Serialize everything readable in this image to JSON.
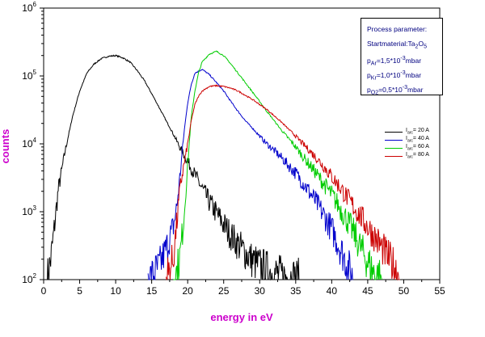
{
  "chart_data": {
    "type": "line",
    "y_scale": "log",
    "xlabel": "energy in eV",
    "ylabel": "counts",
    "xlim": [
      0,
      55
    ],
    "ylim": [
      100,
      1000000
    ],
    "x_ticks": [
      0,
      5,
      10,
      15,
      20,
      25,
      30,
      35,
      40,
      45,
      50,
      55
    ],
    "y_ticks": [
      {
        "value": 100,
        "mantissa": "10",
        "exp": "2"
      },
      {
        "value": 1000,
        "mantissa": "10",
        "exp": "3"
      },
      {
        "value": 10000,
        "mantissa": "10",
        "exp": "4"
      },
      {
        "value": 100000,
        "mantissa": "10",
        "exp": "5"
      },
      {
        "value": 1000000,
        "mantissa": "10",
        "exp": "6"
      }
    ],
    "series": [
      {
        "name": "I_arc = 20 A",
        "label_main": "I",
        "label_sub": "arc",
        "label_rest": "= 20 A",
        "color": "#000000",
        "x": [
          0.5,
          1,
          1.5,
          2,
          3,
          4,
          5,
          6,
          7,
          8,
          9,
          10,
          11,
          12,
          13,
          14,
          15,
          16,
          17,
          18,
          19,
          20,
          21,
          22,
          23,
          24,
          25,
          26,
          27,
          28,
          29,
          30,
          31,
          32,
          33,
          34,
          35,
          35.5
        ],
        "y": [
          100,
          200,
          600,
          2000,
          8000,
          25000,
          60000,
          110000,
          150000,
          180000,
          195000,
          200000,
          185000,
          160000,
          120000,
          85000,
          55000,
          35000,
          22000,
          14000,
          8500,
          5500,
          3500,
          2200,
          1400,
          950,
          650,
          450,
          330,
          250,
          190,
          160,
          140,
          125,
          115,
          110,
          105,
          100
        ]
      },
      {
        "name": "I_arc = 40 A",
        "label_main": "I",
        "label_sub": "arc",
        "label_rest": "= 40 A",
        "color": "#0000cc",
        "x": [
          14.5,
          15,
          16,
          17,
          18,
          18.5,
          19,
          19.5,
          20,
          20.5,
          21,
          22,
          23,
          24,
          25,
          26,
          27,
          28,
          29,
          30,
          31,
          32,
          33,
          34,
          35,
          36,
          37,
          38,
          39,
          40,
          41,
          42,
          43
        ],
        "y": [
          100,
          110,
          150,
          280,
          600,
          1200,
          4000,
          15000,
          40000,
          75000,
          110000,
          125000,
          105000,
          80000,
          60000,
          42000,
          30000,
          22000,
          17000,
          13000,
          10000,
          8000,
          6300,
          4800,
          3700,
          2700,
          1900,
          1300,
          850,
          550,
          320,
          180,
          100
        ]
      },
      {
        "name": "I_arc = 60 A",
        "label_main": "I",
        "label_sub": "arc",
        "label_rest": "= 60 A",
        "color": "#00cc00",
        "x": [
          18,
          18.5,
          19,
          19.5,
          20,
          20.5,
          21,
          21.5,
          22,
          23,
          24,
          25,
          26,
          27,
          28,
          29,
          30,
          31,
          32,
          33,
          34,
          35,
          36,
          37,
          38,
          39,
          40,
          41,
          42,
          43,
          44,
          45,
          46,
          47
        ],
        "y": [
          100,
          130,
          250,
          900,
          5000,
          25000,
          60000,
          110000,
          160000,
          210000,
          230000,
          200000,
          150000,
          110000,
          80000,
          58000,
          42000,
          30000,
          22000,
          16000,
          12000,
          9000,
          6500,
          4800,
          3500,
          2500,
          1800,
          1200,
          800,
          500,
          300,
          180,
          120,
          100
        ]
      },
      {
        "name": "I_arc = 80 A",
        "label_main": "I",
        "label_sub": "arc",
        "label_rest": "= 80 A",
        "color": "#cc0000",
        "x": [
          17,
          18,
          19,
          20,
          20.5,
          21,
          21.5,
          22,
          23,
          24,
          25,
          26,
          27,
          28,
          29,
          30,
          31,
          32,
          33,
          34,
          35,
          36,
          37,
          38,
          39,
          40,
          41,
          42,
          43,
          44,
          45,
          46,
          47,
          48,
          49,
          49.5
        ],
        "y": [
          100,
          200,
          2500,
          10000,
          22000,
          38000,
          50000,
          60000,
          70000,
          72000,
          70000,
          66000,
          60000,
          52000,
          45000,
          38000,
          32000,
          26000,
          21000,
          16500,
          13000,
          10000,
          7800,
          6000,
          4500,
          3300,
          2400,
          1700,
          1200,
          850,
          600,
          420,
          290,
          200,
          140,
          100
        ]
      }
    ]
  },
  "process_box": {
    "title": "Process parameter:",
    "startmaterial": "Startmaterial:Ta",
    "startmaterial_sub": "2",
    "startmaterial_o": "O",
    "startmaterial_o_sub": "5",
    "lines": [
      {
        "p": "p",
        "sub": "Ar",
        "val": "=1,5*10",
        "exp": "-3",
        "unit": "mbar"
      },
      {
        "p": "p",
        "sub": "Kr",
        "val": "=1,0*10",
        "exp": "-3",
        "unit": "mbar"
      },
      {
        "p": "p",
        "sub": "O2",
        "val": "=0,5*10",
        "exp": "-3",
        "unit": "mbar"
      }
    ]
  }
}
